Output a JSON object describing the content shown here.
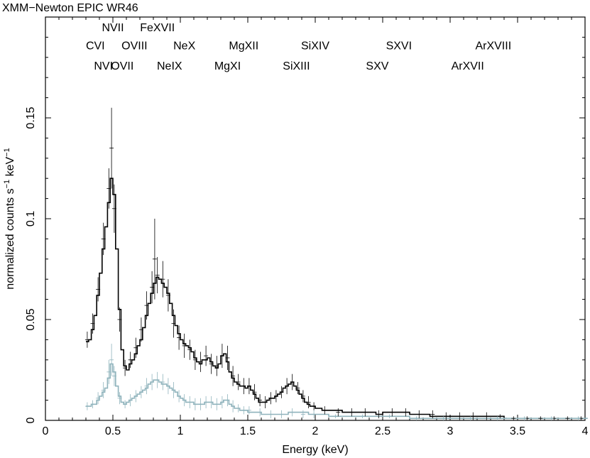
{
  "chart_data": {
    "type": "line",
    "title": "XMM−Newton EPIC WR46",
    "xlabel": "Energy (keV)",
    "ylabel_prefix": "normalized counts s",
    "ylabel_sup1": "−1",
    "ylabel_mid": " keV",
    "ylabel_sup2": "−1",
    "xlim": [
      0,
      4
    ],
    "ylim": [
      0,
      0.2
    ],
    "x_scale": "linear",
    "y_scale": "linear",
    "grid": false,
    "x_ticks": [
      {
        "v": 0,
        "label": "0"
      },
      {
        "v": 0.5,
        "label": "0.5"
      },
      {
        "v": 1,
        "label": "1"
      },
      {
        "v": 1.5,
        "label": "1.5"
      },
      {
        "v": 2,
        "label": "2"
      },
      {
        "v": 2.5,
        "label": "2.5"
      },
      {
        "v": 3,
        "label": "3"
      },
      {
        "v": 3.5,
        "label": "3.5"
      },
      {
        "v": 4,
        "label": "4"
      }
    ],
    "y_ticks": [
      {
        "v": 0,
        "label": "0"
      },
      {
        "v": 0.05,
        "label": "0.05"
      },
      {
        "v": 0.1,
        "label": "0.1"
      },
      {
        "v": 0.15,
        "label": "0.15"
      }
    ],
    "annotations": [
      {
        "text": "NVII",
        "x": 0.5,
        "y": 0.193
      },
      {
        "text": "FeXVII",
        "x": 0.83,
        "y": 0.193
      },
      {
        "text": "CVI",
        "x": 0.37,
        "y": 0.184
      },
      {
        "text": "OVIII",
        "x": 0.66,
        "y": 0.184
      },
      {
        "text": "NeX",
        "x": 1.03,
        "y": 0.184
      },
      {
        "text": "MgXII",
        "x": 1.47,
        "y": 0.184
      },
      {
        "text": "SiXIV",
        "x": 2.0,
        "y": 0.184
      },
      {
        "text": "SXVI",
        "x": 2.62,
        "y": 0.184
      },
      {
        "text": "ArXVIII",
        "x": 3.32,
        "y": 0.184
      },
      {
        "text": "NVI",
        "x": 0.43,
        "y": 0.174
      },
      {
        "text": "OVII",
        "x": 0.57,
        "y": 0.174
      },
      {
        "text": "NeIX",
        "x": 0.92,
        "y": 0.174
      },
      {
        "text": "MgXI",
        "x": 1.35,
        "y": 0.174
      },
      {
        "text": "SiXIII",
        "x": 1.86,
        "y": 0.174
      },
      {
        "text": "SXV",
        "x": 2.46,
        "y": 0.174
      },
      {
        "text": "ArXVII",
        "x": 3.13,
        "y": 0.174
      }
    ],
    "series": [
      {
        "color": "#000000",
        "style": "step",
        "x": [
          0.3,
          0.32,
          0.34,
          0.36,
          0.38,
          0.4,
          0.42,
          0.44,
          0.46,
          0.48,
          0.5,
          0.52,
          0.54,
          0.56,
          0.58,
          0.6,
          0.62,
          0.64,
          0.66,
          0.68,
          0.7,
          0.72,
          0.74,
          0.76,
          0.78,
          0.8,
          0.82,
          0.84,
          0.86,
          0.88,
          0.9,
          0.92,
          0.94,
          0.96,
          0.98,
          1.0,
          1.02,
          1.04,
          1.06,
          1.08,
          1.1,
          1.12,
          1.14,
          1.16,
          1.18,
          1.2,
          1.22,
          1.24,
          1.26,
          1.28,
          1.3,
          1.32,
          1.34,
          1.36,
          1.38,
          1.4,
          1.42,
          1.44,
          1.46,
          1.48,
          1.5,
          1.52,
          1.54,
          1.56,
          1.58,
          1.6,
          1.62,
          1.64,
          1.66,
          1.68,
          1.7,
          1.72,
          1.74,
          1.76,
          1.78,
          1.8,
          1.82,
          1.84,
          1.86,
          1.88,
          1.9,
          1.92,
          1.94,
          1.96,
          1.98,
          2.0,
          2.05,
          2.1,
          2.15,
          2.2,
          2.25,
          2.3,
          2.35,
          2.4,
          2.45,
          2.5,
          2.55,
          2.6,
          2.65,
          2.7,
          2.75,
          2.8,
          2.85,
          2.9,
          2.95,
          3.0,
          3.05,
          3.1,
          3.15,
          3.2,
          3.25,
          3.3,
          3.35,
          3.4
        ],
        "y": [
          0.039,
          0.04,
          0.045,
          0.052,
          0.062,
          0.073,
          0.085,
          0.096,
          0.108,
          0.12,
          0.112,
          0.085,
          0.055,
          0.035,
          0.027,
          0.025,
          0.028,
          0.03,
          0.033,
          0.037,
          0.04,
          0.046,
          0.052,
          0.058,
          0.063,
          0.068,
          0.071,
          0.07,
          0.068,
          0.066,
          0.063,
          0.058,
          0.052,
          0.047,
          0.043,
          0.04,
          0.038,
          0.037,
          0.036,
          0.034,
          0.031,
          0.029,
          0.028,
          0.03,
          0.03,
          0.031,
          0.029,
          0.027,
          0.026,
          0.028,
          0.032,
          0.033,
          0.029,
          0.024,
          0.021,
          0.019,
          0.018,
          0.017,
          0.017,
          0.016,
          0.017,
          0.015,
          0.013,
          0.011,
          0.009,
          0.009,
          0.009,
          0.01,
          0.011,
          0.011,
          0.012,
          0.013,
          0.014,
          0.016,
          0.017,
          0.018,
          0.019,
          0.017,
          0.015,
          0.013,
          0.011,
          0.009,
          0.008,
          0.007,
          0.007,
          0.006,
          0.005,
          0.005,
          0.005,
          0.004,
          0.004,
          0.004,
          0.004,
          0.004,
          0.003,
          0.004,
          0.004,
          0.004,
          0.004,
          0.003,
          0.003,
          0.003,
          0.002,
          0.002,
          0.002,
          0.002,
          0.002,
          0.002,
          0.002,
          0.002,
          0.002,
          0.002,
          0.002,
          0.001
        ]
      },
      {
        "color": "#8fb3bc",
        "style": "step",
        "x": [
          0.3,
          0.32,
          0.34,
          0.36,
          0.38,
          0.4,
          0.42,
          0.44,
          0.46,
          0.48,
          0.5,
          0.52,
          0.54,
          0.56,
          0.58,
          0.6,
          0.62,
          0.64,
          0.66,
          0.68,
          0.7,
          0.72,
          0.74,
          0.76,
          0.78,
          0.8,
          0.82,
          0.84,
          0.86,
          0.88,
          0.9,
          0.92,
          0.94,
          0.96,
          0.98,
          1.0,
          1.02,
          1.04,
          1.06,
          1.08,
          1.1,
          1.12,
          1.14,
          1.16,
          1.18,
          1.2,
          1.22,
          1.24,
          1.26,
          1.28,
          1.3,
          1.32,
          1.34,
          1.36,
          1.38,
          1.4,
          1.42,
          1.44,
          1.46,
          1.48,
          1.5,
          1.55,
          1.6,
          1.65,
          1.7,
          1.75,
          1.8,
          1.85,
          1.9,
          1.95,
          2.0,
          2.1,
          2.2,
          2.3,
          2.4,
          2.5,
          2.6,
          2.7,
          2.8,
          2.9,
          3.0,
          3.1,
          3.2,
          3.3,
          3.4,
          3.6,
          3.8,
          4.0
        ],
        "y": [
          0.007,
          0.007,
          0.008,
          0.008,
          0.01,
          0.012,
          0.014,
          0.016,
          0.021,
          0.028,
          0.024,
          0.017,
          0.012,
          0.009,
          0.008,
          0.009,
          0.01,
          0.011,
          0.012,
          0.013,
          0.014,
          0.015,
          0.016,
          0.018,
          0.019,
          0.02,
          0.02,
          0.019,
          0.018,
          0.018,
          0.017,
          0.016,
          0.015,
          0.014,
          0.012,
          0.011,
          0.01,
          0.009,
          0.009,
          0.009,
          0.008,
          0.008,
          0.008,
          0.008,
          0.009,
          0.009,
          0.009,
          0.008,
          0.008,
          0.008,
          0.009,
          0.01,
          0.01,
          0.008,
          0.007,
          0.006,
          0.006,
          0.005,
          0.005,
          0.005,
          0.004,
          0.004,
          0.003,
          0.003,
          0.003,
          0.003,
          0.004,
          0.004,
          0.004,
          0.003,
          0.003,
          0.002,
          0.002,
          0.002,
          0.002,
          0.002,
          0.002,
          0.001,
          0.001,
          0.001,
          0.001,
          0.001,
          0.001,
          0.001,
          0.001,
          0.001,
          0.001,
          0.001
        ]
      }
    ],
    "data_points": [
      {
        "color": "#000000",
        "x": [
          0.31,
          0.35,
          0.39,
          0.43,
          0.47,
          0.49,
          0.51,
          0.55,
          0.59,
          0.63,
          0.67,
          0.71,
          0.75,
          0.79,
          0.81,
          0.83,
          0.87,
          0.91,
          0.95,
          0.99,
          1.03,
          1.07,
          1.11,
          1.15,
          1.19,
          1.23,
          1.27,
          1.31,
          1.35,
          1.39,
          1.43,
          1.47,
          1.51,
          1.55,
          1.59,
          1.63,
          1.67,
          1.71,
          1.75,
          1.79,
          1.83,
          1.87,
          1.91,
          1.95,
          1.99,
          2.07,
          2.17,
          2.27,
          2.37,
          2.47,
          2.57,
          2.67,
          2.77,
          2.87,
          2.97,
          3.07,
          3.17,
          3.27,
          3.37,
          3.47,
          3.57,
          3.67,
          3.77,
          3.87,
          3.97
        ],
        "y": [
          0.04,
          0.048,
          0.065,
          0.09,
          0.115,
          0.135,
          0.105,
          0.05,
          0.026,
          0.03,
          0.036,
          0.045,
          0.057,
          0.066,
          0.08,
          0.072,
          0.07,
          0.062,
          0.048,
          0.041,
          0.037,
          0.035,
          0.03,
          0.029,
          0.032,
          0.028,
          0.027,
          0.032,
          0.031,
          0.022,
          0.019,
          0.017,
          0.017,
          0.014,
          0.01,
          0.009,
          0.011,
          0.012,
          0.014,
          0.017,
          0.019,
          0.016,
          0.012,
          0.009,
          0.007,
          0.005,
          0.004,
          0.004,
          0.004,
          0.003,
          0.004,
          0.004,
          0.003,
          0.003,
          0.002,
          0.002,
          0.002,
          0.002,
          0.002,
          0.001,
          0.001,
          0.001,
          0.001,
          0.001,
          0.001
        ],
        "err": [
          0.004,
          0.005,
          0.006,
          0.008,
          0.01,
          0.02,
          0.012,
          0.006,
          0.004,
          0.004,
          0.005,
          0.006,
          0.007,
          0.008,
          0.02,
          0.009,
          0.009,
          0.008,
          0.007,
          0.006,
          0.006,
          0.005,
          0.005,
          0.005,
          0.005,
          0.005,
          0.005,
          0.006,
          0.006,
          0.005,
          0.004,
          0.004,
          0.004,
          0.004,
          0.003,
          0.003,
          0.003,
          0.003,
          0.003,
          0.004,
          0.004,
          0.003,
          0.003,
          0.003,
          0.002,
          0.002,
          0.002,
          0.002,
          0.002,
          0.002,
          0.002,
          0.002,
          0.002,
          0.002,
          0.002,
          0.002,
          0.002,
          0.002,
          0.001,
          0.001,
          0.001,
          0.001,
          0.001,
          0.001,
          0.001
        ]
      },
      {
        "color": "#8fb3bc",
        "x": [
          0.31,
          0.35,
          0.39,
          0.43,
          0.47,
          0.49,
          0.51,
          0.55,
          0.59,
          0.63,
          0.67,
          0.71,
          0.75,
          0.79,
          0.83,
          0.87,
          0.91,
          0.95,
          0.99,
          1.03,
          1.07,
          1.11,
          1.15,
          1.19,
          1.23,
          1.27,
          1.31,
          1.35,
          1.39,
          1.43,
          1.47,
          1.51,
          1.59,
          1.67,
          1.75,
          1.83,
          1.91,
          1.99,
          2.15,
          2.35,
          2.55,
          2.75,
          2.95,
          3.15,
          3.35,
          3.55,
          3.75,
          3.95
        ],
        "y": [
          0.007,
          0.008,
          0.011,
          0.015,
          0.024,
          0.03,
          0.022,
          0.011,
          0.008,
          0.01,
          0.012,
          0.014,
          0.017,
          0.019,
          0.02,
          0.019,
          0.017,
          0.015,
          0.012,
          0.01,
          0.009,
          0.008,
          0.008,
          0.009,
          0.009,
          0.008,
          0.009,
          0.01,
          0.007,
          0.006,
          0.005,
          0.005,
          0.004,
          0.003,
          0.003,
          0.004,
          0.003,
          0.003,
          0.002,
          0.002,
          0.002,
          0.001,
          0.001,
          0.001,
          0.001,
          0.001,
          0.001,
          0.001
        ],
        "err": [
          0.002,
          0.002,
          0.003,
          0.004,
          0.006,
          0.008,
          0.005,
          0.003,
          0.002,
          0.003,
          0.003,
          0.003,
          0.004,
          0.004,
          0.004,
          0.004,
          0.004,
          0.004,
          0.003,
          0.003,
          0.003,
          0.003,
          0.003,
          0.003,
          0.003,
          0.003,
          0.003,
          0.003,
          0.003,
          0.002,
          0.002,
          0.002,
          0.002,
          0.002,
          0.002,
          0.002,
          0.002,
          0.002,
          0.001,
          0.001,
          0.001,
          0.001,
          0.001,
          0.001,
          0.001,
          0.001,
          0.001,
          0.001
        ]
      }
    ]
  }
}
